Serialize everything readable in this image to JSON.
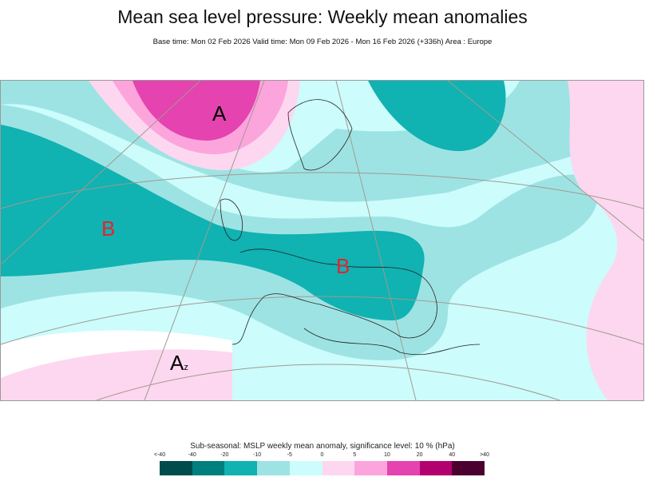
{
  "title": "Mean sea level pressure: Weekly mean anomalies",
  "subtitle": "Base time: Mon 02 Feb 2026 Valid time: Mon 09 Feb 2026 - Mon 16 Feb 2026 (+336h) Area : Europe",
  "map": {
    "labels": [
      {
        "text": "A",
        "color": "#000000"
      },
      {
        "text": "B",
        "color": "#e8222a"
      },
      {
        "text": "B",
        "color": "#e8222a"
      },
      {
        "text": "A",
        "sub": "z",
        "color": "#000000"
      }
    ]
  },
  "legend": {
    "title": "Sub-seasonal: MSLP weekly mean anomaly, significance level: 10 % (hPa)",
    "ticks": [
      "<-40",
      "-40",
      "-20",
      "-10",
      "-5",
      "0",
      "5",
      "10",
      "20",
      "40",
      ">40"
    ],
    "colors": [
      "#004c4c",
      "#007f7f",
      "#10b2b2",
      "#9ee3e3",
      "#ccfcfc",
      "#fdd7ef",
      "#fca5dd",
      "#e443b0",
      "#b3006f",
      "#4c0030"
    ]
  }
}
